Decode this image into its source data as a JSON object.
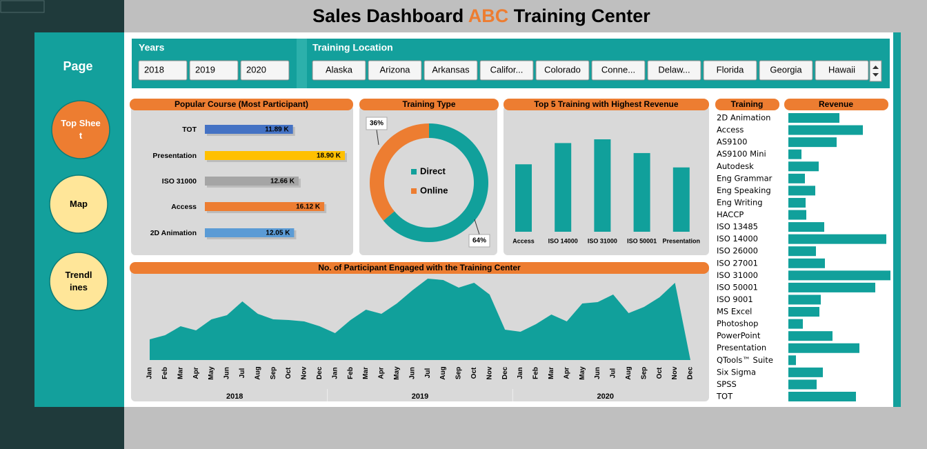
{
  "title": {
    "before": "Sales Dashboard",
    "highlight": "ABC",
    "after": "Training Center"
  },
  "nav": {
    "heading": "Page",
    "buttons": [
      "Top Sheet",
      "Map",
      "Trendlines"
    ]
  },
  "slicers": [
    {
      "title": "Years",
      "items": [
        "2018",
        "2019",
        "2020"
      ]
    },
    {
      "title": "Training Location",
      "items": [
        "Alaska",
        "Arizona",
        "Arkansas",
        "Califor...",
        "Colorado",
        "Conne...",
        "Delaw...",
        "Florida",
        "Georgia",
        "Hawaii"
      ]
    }
  ],
  "chart_data": [
    {
      "type": "hbar",
      "title": "Popular Course (Most Participant)",
      "categories": [
        "TOT",
        "Presentation",
        "ISO 31000",
        "Access",
        "2D Animation"
      ],
      "values": [
        11.89,
        18.9,
        12.66,
        16.12,
        12.05
      ],
      "value_labels": [
        "11.89 K",
        "18.90 K",
        "12.66 K",
        "16.12 K",
        "12.05 K"
      ],
      "colors": [
        "#4472c4",
        "#ffc000",
        "#a5a5a5",
        "#ed7d31",
        "#5b9bd5"
      ]
    },
    {
      "type": "donut",
      "title": "Training Type",
      "categories": [
        "Direct",
        "Online"
      ],
      "values": [
        64,
        36
      ],
      "value_labels": [
        "64%",
        "36%"
      ],
      "colors": [
        "#11a09b",
        "#ed7d31"
      ]
    },
    {
      "type": "column",
      "title": "Top 5 Training with Highest Revenue",
      "categories": [
        "Access",
        "ISO 14000",
        "ISO 31000",
        "ISO 50001",
        "Presentation"
      ],
      "values": [
        108,
        142,
        148,
        126,
        103
      ],
      "color": "#11a09b"
    },
    {
      "type": "area",
      "title": "No. of Participant Engaged with the Training Center",
      "categories": [
        "Jan",
        "Feb",
        "Mar",
        "Apr",
        "May",
        "Jun",
        "Jul",
        "Aug",
        "Sep",
        "Oct",
        "Nov",
        "Dec",
        "Jan",
        "Feb",
        "Mar",
        "Apr",
        "May",
        "Jun",
        "Jul",
        "Aug",
        "Sep",
        "Oct",
        "Nov",
        "Dec",
        "Jan",
        "Feb",
        "Mar",
        "Apr",
        "May",
        "Jun",
        "Jul",
        "Aug",
        "Sep",
        "Oct",
        "Nov",
        "Dec"
      ],
      "category_groups": [
        "2018",
        "2019",
        "2020"
      ],
      "values": [
        30,
        36,
        49,
        43,
        59,
        65,
        85,
        67,
        59,
        58,
        56,
        49,
        39,
        58,
        73,
        67,
        82,
        101,
        118,
        116,
        105,
        112,
        95,
        44,
        41,
        52,
        66,
        56,
        82,
        84,
        95,
        68,
        77,
        91,
        112,
        0
      ],
      "color": "#11a09b"
    },
    {
      "type": "hbar-list",
      "y_label": "Training",
      "x_label": "Revenue",
      "categories": [
        "2D Animation",
        "Access",
        "AS9100",
        "AS9100 Mini",
        "Autodesk",
        "Eng Grammar",
        "Eng Speaking",
        "Eng Writing",
        "HACCP",
        "ISO 13485",
        "ISO 14000",
        "ISO 26000",
        "ISO 27001",
        "ISO 31000",
        "ISO 50001",
        "ISO 9001",
        "MS Excel",
        "Photoshop",
        "PowerPoint",
        "Presentation",
        "QTools™ Suite",
        "Six Sigma",
        "SPSS",
        "TOT"
      ],
      "values": [
        74,
        108,
        70,
        19,
        44,
        24,
        39,
        25,
        26,
        52,
        142,
        40,
        53,
        148,
        126,
        47,
        45,
        21,
        64,
        103,
        11,
        50,
        41,
        98
      ],
      "color": "#11a09b"
    }
  ]
}
